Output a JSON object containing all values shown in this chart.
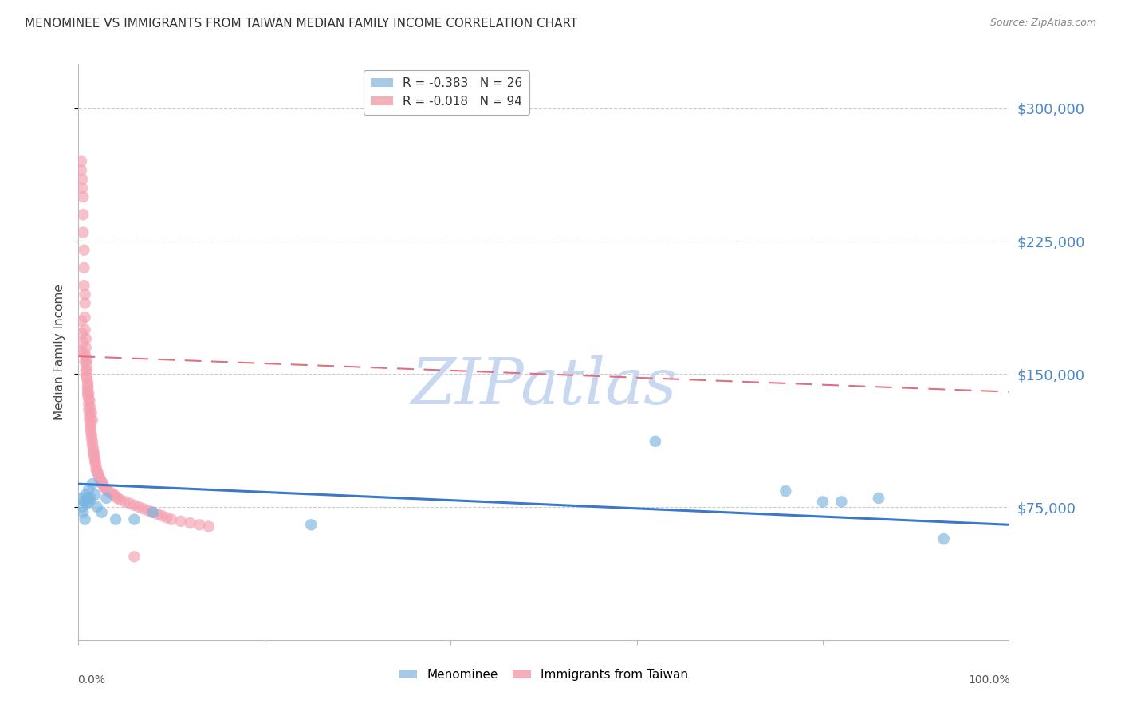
{
  "title": "MENOMINEE VS IMMIGRANTS FROM TAIWAN MEDIAN FAMILY INCOME CORRELATION CHART",
  "source": "Source: ZipAtlas.com",
  "ylabel": "Median Family Income",
  "ytick_labels": [
    "$75,000",
    "$150,000",
    "$225,000",
    "$300,000"
  ],
  "ytick_values": [
    75000,
    150000,
    225000,
    300000
  ],
  "ymin": 0,
  "ymax": 325000,
  "xmin": 0.0,
  "xmax": 1.0,
  "menominee_color": "#7ab4e0",
  "taiwan_color": "#f4a0b0",
  "background_color": "#ffffff",
  "grid_color": "#cccccc",
  "title_color": "#333333",
  "ytick_color": "#4a86c8",
  "watermark": "ZIPatlas",
  "watermark_color": "#c8d8f0",
  "menominee_x": [
    0.003,
    0.004,
    0.005,
    0.006,
    0.007,
    0.008,
    0.009,
    0.01,
    0.011,
    0.012,
    0.013,
    0.015,
    0.018,
    0.02,
    0.025,
    0.03,
    0.04,
    0.06,
    0.08,
    0.25,
    0.62,
    0.76,
    0.8,
    0.82,
    0.86,
    0.93
  ],
  "menominee_y": [
    80000,
    75000,
    72000,
    78000,
    68000,
    82000,
    77000,
    80000,
    85000,
    78000,
    80000,
    88000,
    82000,
    75000,
    72000,
    80000,
    68000,
    68000,
    72000,
    65000,
    112000,
    84000,
    78000,
    78000,
    80000,
    57000
  ],
  "taiwan_x": [
    0.002,
    0.003,
    0.003,
    0.004,
    0.004,
    0.005,
    0.005,
    0.005,
    0.006,
    0.006,
    0.006,
    0.007,
    0.007,
    0.007,
    0.007,
    0.008,
    0.008,
    0.008,
    0.009,
    0.009,
    0.009,
    0.009,
    0.01,
    0.01,
    0.01,
    0.01,
    0.011,
    0.011,
    0.011,
    0.012,
    0.012,
    0.012,
    0.013,
    0.013,
    0.013,
    0.014,
    0.014,
    0.015,
    0.015,
    0.016,
    0.016,
    0.017,
    0.017,
    0.018,
    0.018,
    0.019,
    0.019,
    0.02,
    0.021,
    0.022,
    0.023,
    0.024,
    0.025,
    0.026,
    0.027,
    0.028,
    0.03,
    0.032,
    0.035,
    0.038,
    0.04,
    0.042,
    0.045,
    0.05,
    0.055,
    0.06,
    0.065,
    0.07,
    0.075,
    0.08,
    0.085,
    0.09,
    0.095,
    0.1,
    0.11,
    0.12,
    0.13,
    0.14,
    0.003,
    0.004,
    0.005,
    0.006,
    0.007,
    0.008,
    0.009,
    0.01,
    0.011,
    0.012,
    0.013,
    0.014,
    0.015,
    0.06
  ],
  "taiwan_y": [
    163000,
    270000,
    265000,
    260000,
    255000,
    250000,
    240000,
    230000,
    220000,
    210000,
    200000,
    195000,
    190000,
    182000,
    175000,
    170000,
    165000,
    160000,
    158000,
    155000,
    152000,
    148000,
    145000,
    142000,
    140000,
    138000,
    136000,
    133000,
    130000,
    128000,
    126000,
    124000,
    122000,
    120000,
    118000,
    116000,
    114000,
    112000,
    110000,
    108000,
    106000,
    105000,
    103000,
    101000,
    100000,
    98000,
    96000,
    95000,
    94000,
    92000,
    91000,
    90000,
    89000,
    88000,
    87000,
    86000,
    85000,
    84000,
    83000,
    82000,
    81000,
    80000,
    79000,
    78000,
    77000,
    76000,
    75000,
    74000,
    73000,
    72000,
    71000,
    70000,
    69000,
    68000,
    67000,
    66000,
    65000,
    64000,
    180000,
    173000,
    168000,
    162000,
    157000,
    152000,
    148000,
    143000,
    139000,
    135000,
    131000,
    128000,
    124000,
    47000
  ]
}
